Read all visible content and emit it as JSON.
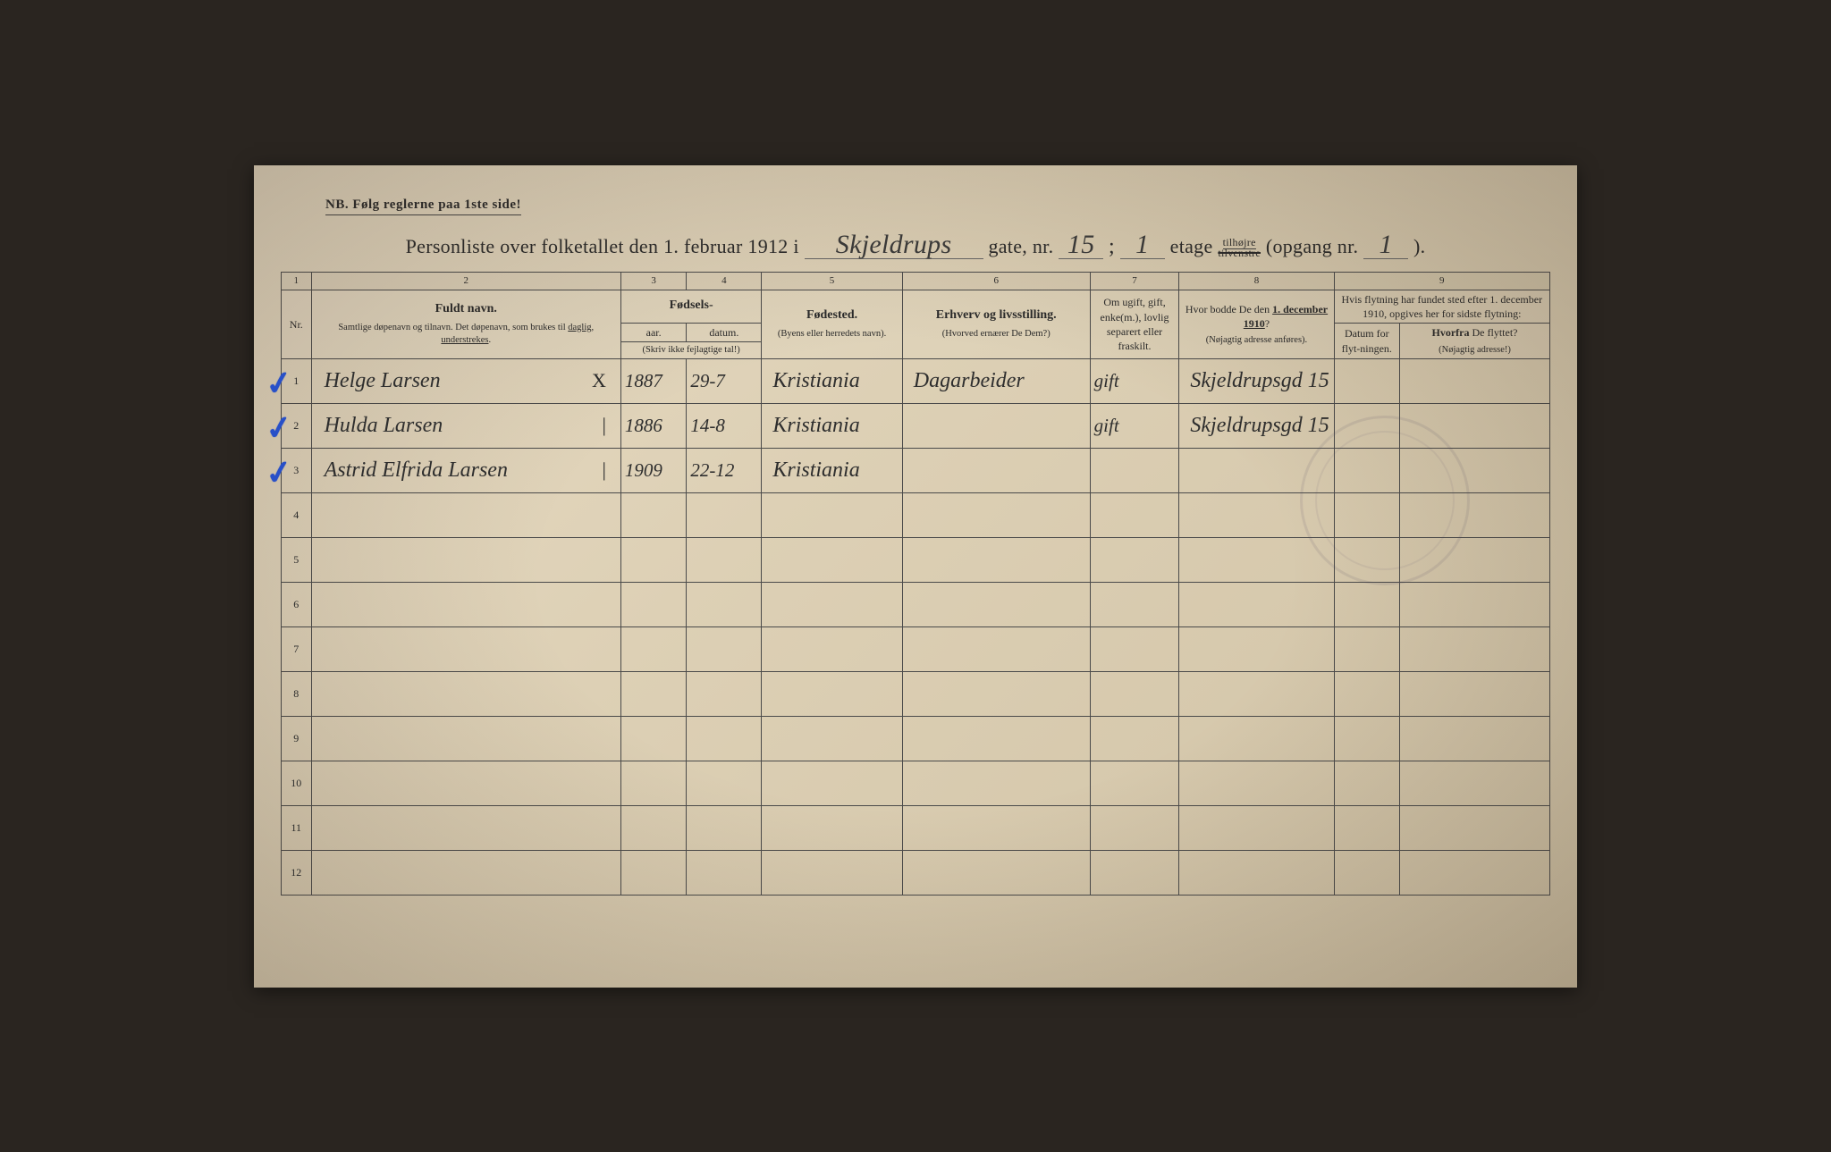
{
  "colors": {
    "paper_bg_light": "#e8dcc4",
    "paper_bg_mid": "#ddd0b5",
    "paper_bg_dark": "#d0c2a5",
    "ink": "#2a2a2a",
    "rule": "#4a4a4a",
    "checkmark": "#2850c8"
  },
  "nb": "NB.   Følg reglerne paa 1ste side!",
  "title": {
    "prefix": "Personliste over folketallet den 1. februar 1912 i",
    "street": "Skjeldrups",
    "gate_label": "gate, nr.",
    "gate_nr": "15",
    "semicolon": ";",
    "etage_nr": "1",
    "etage_label": "etage",
    "tilhojre": "tilhøjre",
    "tilvenstre_struck": "tilvenstre",
    "opgang_label": "(opgang nr.",
    "opgang_nr": "1",
    "close": ")."
  },
  "column_numbers": [
    "1",
    "2",
    "3",
    "4",
    "5",
    "6",
    "7",
    "8",
    "9"
  ],
  "headers": {
    "nr": "Nr.",
    "name_main": "Fuldt navn.",
    "name_sub": "Samtlige døpenavn og tilnavn. Det døpenavn, som brukes til daglig, understrekes.",
    "fodsels": "Fødsels-",
    "aar": "aar.",
    "datum": "datum.",
    "fodsels_note": "(Skriv ikke fejlagtige tal!)",
    "fodested_main": "Fødested.",
    "fodested_sub": "(Byens eller herredets navn).",
    "erhverv_main": "Erhverv og livsstilling.",
    "erhverv_sub": "(Hvorved ernærer De Dem?)",
    "status": "Om ugift, gift, enke(m.), lovlig separert eller fraskilt.",
    "addr1910_main": "Hvor bodde De den 1. december 1910?",
    "addr1910_sub": "(Nøjagtig adresse anføres).",
    "flytning_top": "Hvis flytning har fundet sted efter 1. december 1910, opgives her for sidste flytning:",
    "flyt_dato": "Datum for flyt-ningen.",
    "flyt_hvorfra": "Hvorfra De flyttet? (Nøjagtig adresse!)"
  },
  "rows": [
    {
      "nr": "1",
      "check": true,
      "mark": "X",
      "name": "Helge Larsen",
      "year": "1887",
      "date": "29-7",
      "place": "Kristiania",
      "occupation": "Dagarbeider",
      "status": "gift",
      "addr1910": "Skjeldrupsgd 15",
      "flyt_dato": "",
      "flyt_from": ""
    },
    {
      "nr": "2",
      "check": true,
      "mark": "|",
      "name": "Hulda Larsen",
      "year": "1886",
      "date": "14-8",
      "place": "Kristiania",
      "occupation": "",
      "status": "gift",
      "addr1910": "Skjeldrupsgd 15",
      "flyt_dato": "",
      "flyt_from": ""
    },
    {
      "nr": "3",
      "check": true,
      "mark": "|",
      "name": "Astrid Elfrida Larsen",
      "year": "1909",
      "date": "22-12",
      "place": "Kristiania",
      "occupation": "",
      "status": "",
      "addr1910": "",
      "flyt_dato": "",
      "flyt_from": ""
    },
    {
      "nr": "4"
    },
    {
      "nr": "5"
    },
    {
      "nr": "6"
    },
    {
      "nr": "7"
    },
    {
      "nr": "8"
    },
    {
      "nr": "9"
    },
    {
      "nr": "10"
    },
    {
      "nr": "11"
    },
    {
      "nr": "12"
    }
  ]
}
